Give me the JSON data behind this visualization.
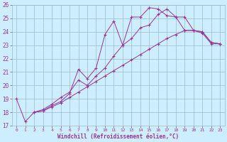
{
  "xlabel": "Windchill (Refroidissement éolien,°C)",
  "bg_color": "#cceeff",
  "line_color": "#993399",
  "grid_color": "#99bbcc",
  "xlim": [
    -0.5,
    23.5
  ],
  "ylim": [
    17,
    26
  ],
  "xticks": [
    0,
    1,
    2,
    3,
    4,
    5,
    6,
    7,
    8,
    9,
    10,
    11,
    12,
    13,
    14,
    15,
    16,
    17,
    18,
    19,
    20,
    21,
    22,
    23
  ],
  "yticks": [
    17,
    18,
    19,
    20,
    21,
    22,
    23,
    24,
    25,
    26
  ],
  "curve1_x": [
    0,
    1,
    2,
    3,
    4,
    5,
    6,
    7,
    8,
    9,
    10,
    11,
    12,
    13,
    14,
    15,
    16,
    17,
    18,
    19,
    20,
    21,
    22,
    23
  ],
  "curve1_y": [
    19.0,
    17.3,
    18.0,
    18.1,
    18.5,
    18.8,
    19.4,
    21.2,
    20.5,
    21.3,
    23.8,
    24.8,
    23.0,
    25.1,
    25.1,
    25.8,
    25.7,
    25.2,
    25.1,
    25.1,
    24.1,
    23.9,
    23.1,
    23.1
  ],
  "curve2_x": [
    2,
    3,
    4,
    5,
    6,
    7,
    8,
    9,
    10,
    11,
    12,
    13,
    14,
    15,
    16,
    17,
    18,
    19,
    20,
    21,
    22,
    23
  ],
  "curve2_y": [
    18.0,
    18.2,
    18.6,
    19.1,
    19.5,
    20.4,
    20.0,
    20.7,
    21.3,
    22.2,
    23.0,
    23.5,
    24.3,
    24.5,
    25.3,
    25.7,
    25.1,
    24.1,
    24.1,
    24.0,
    23.2,
    23.1
  ],
  "curve3_x": [
    2,
    3,
    4,
    5,
    6,
    7,
    8,
    9,
    10,
    11,
    12,
    13,
    14,
    15,
    16,
    17,
    18,
    19,
    20,
    21,
    22,
    23
  ],
  "curve3_y": [
    18.0,
    18.1,
    18.4,
    18.7,
    19.1,
    19.5,
    19.9,
    20.3,
    20.7,
    21.1,
    21.5,
    21.9,
    22.3,
    22.7,
    23.1,
    23.5,
    23.8,
    24.1,
    24.1,
    24.0,
    23.2,
    23.1
  ]
}
